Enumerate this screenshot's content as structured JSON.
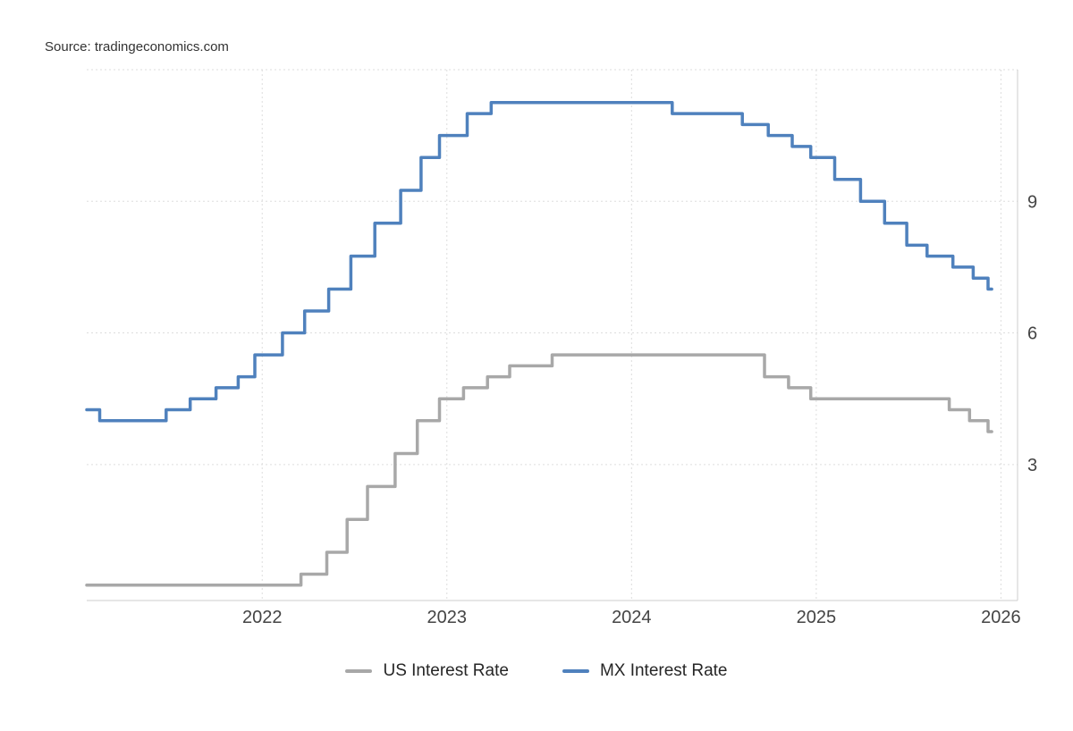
{
  "source_label": "Source: tradingeconomics.com",
  "legend": [
    {
      "label": "US Interest Rate",
      "color": "#a8a8a8"
    },
    {
      "label": "MX Interest Rate",
      "color": "#4f81bd"
    }
  ],
  "style": {
    "grid_color": "#dddddd",
    "axis_color": "#cccccc",
    "tick_color": "#444444",
    "us_line_color": "#a8a8a8",
    "mx_line_color": "#4f81bd"
  },
  "chart_data": {
    "type": "line",
    "step": true,
    "title": "",
    "xlabel": "",
    "ylabel": "",
    "grid": true,
    "legend_position": "bottom",
    "x_axis": {
      "min": 2021.05,
      "max": 2026.09,
      "ticks": [
        2022,
        2023,
        2024,
        2025,
        2026
      ],
      "tick_labels": [
        "2022",
        "2023",
        "2024",
        "2025",
        "2026"
      ]
    },
    "y_axis": {
      "min": -0.1,
      "max": 12.0,
      "ticks": [
        3,
        6,
        9
      ],
      "tick_labels": [
        "3",
        "6",
        "9"
      ],
      "position": "right"
    },
    "x_end": 2025.95,
    "series": [
      {
        "name": "US Interest Rate",
        "color": "#a8a8a8",
        "points": [
          [
            2021.05,
            0.25
          ],
          [
            2022.21,
            0.5
          ],
          [
            2022.35,
            1.0
          ],
          [
            2022.46,
            1.75
          ],
          [
            2022.57,
            2.5
          ],
          [
            2022.72,
            3.25
          ],
          [
            2022.84,
            4.0
          ],
          [
            2022.96,
            4.5
          ],
          [
            2023.09,
            4.75
          ],
          [
            2023.22,
            5.0
          ],
          [
            2023.34,
            5.25
          ],
          [
            2023.57,
            5.5
          ],
          [
            2024.72,
            5.0
          ],
          [
            2024.85,
            4.75
          ],
          [
            2024.97,
            4.5
          ],
          [
            2025.72,
            4.25
          ],
          [
            2025.83,
            4.0
          ],
          [
            2025.93,
            3.75
          ]
        ]
      },
      {
        "name": "MX Interest Rate",
        "color": "#4f81bd",
        "points": [
          [
            2021.05,
            4.25
          ],
          [
            2021.12,
            4.0
          ],
          [
            2021.48,
            4.25
          ],
          [
            2021.61,
            4.5
          ],
          [
            2021.75,
            4.75
          ],
          [
            2021.87,
            5.0
          ],
          [
            2021.96,
            5.5
          ],
          [
            2022.11,
            6.0
          ],
          [
            2022.23,
            6.5
          ],
          [
            2022.36,
            7.0
          ],
          [
            2022.48,
            7.75
          ],
          [
            2022.61,
            8.5
          ],
          [
            2022.75,
            9.25
          ],
          [
            2022.86,
            10.0
          ],
          [
            2022.96,
            10.5
          ],
          [
            2023.11,
            11.0
          ],
          [
            2023.24,
            11.25
          ],
          [
            2024.22,
            11.0
          ],
          [
            2024.6,
            10.75
          ],
          [
            2024.74,
            10.5
          ],
          [
            2024.87,
            10.25
          ],
          [
            2024.97,
            10.0
          ],
          [
            2025.1,
            9.5
          ],
          [
            2025.24,
            9.0
          ],
          [
            2025.37,
            8.5
          ],
          [
            2025.49,
            8.0
          ],
          [
            2025.6,
            7.75
          ],
          [
            2025.74,
            7.5
          ],
          [
            2025.85,
            7.25
          ],
          [
            2025.93,
            7.0
          ]
        ]
      }
    ]
  }
}
